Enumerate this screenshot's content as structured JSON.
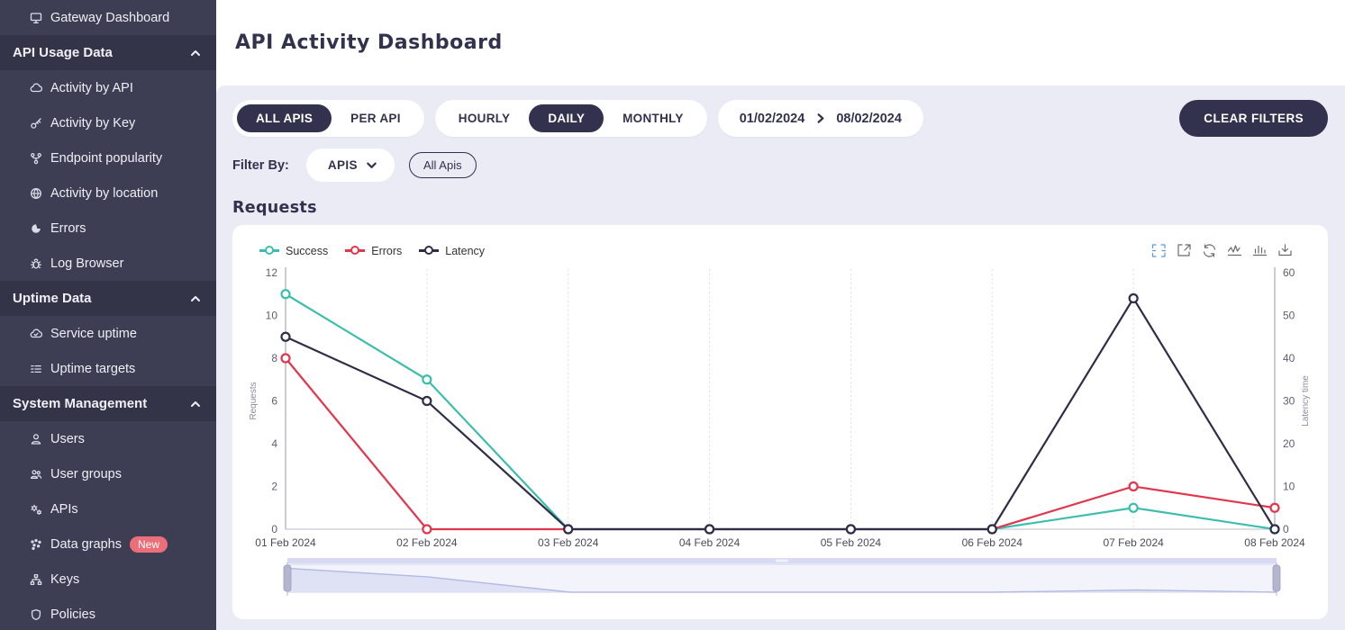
{
  "sidebar": {
    "top_item": {
      "label": "Gateway Dashboard",
      "icon": "monitor-icon"
    },
    "sections": [
      {
        "label": "API Usage Data",
        "items": [
          {
            "label": "Activity by API",
            "icon": "cloud-icon"
          },
          {
            "label": "Activity by Key",
            "icon": "key-icon"
          },
          {
            "label": "Endpoint popularity",
            "icon": "branch-icon"
          },
          {
            "label": "Activity by location",
            "icon": "globe-icon"
          },
          {
            "label": "Errors",
            "icon": "error-circle-icon"
          },
          {
            "label": "Log Browser",
            "icon": "bug-icon"
          }
        ]
      },
      {
        "label": "Uptime Data",
        "items": [
          {
            "label": "Service uptime",
            "icon": "cloud-check-icon"
          },
          {
            "label": "Uptime targets",
            "icon": "list-icon"
          }
        ]
      },
      {
        "label": "System Management",
        "items": [
          {
            "label": "Users",
            "icon": "user-icon"
          },
          {
            "label": "User groups",
            "icon": "user-group-icon"
          },
          {
            "label": "APIs",
            "icon": "gears-icon"
          },
          {
            "label": "Data graphs",
            "icon": "scatter-icon",
            "badge": "New"
          },
          {
            "label": "Keys",
            "icon": "sitemap-icon"
          },
          {
            "label": "Policies",
            "icon": "shield-icon"
          }
        ]
      }
    ]
  },
  "header": {
    "title": "API Activity Dashboard"
  },
  "filters": {
    "api_scope_tabs": [
      {
        "label": "ALL APIS",
        "selected": true
      },
      {
        "label": "PER API",
        "selected": false
      }
    ],
    "granularity_tabs": [
      {
        "label": "HOURLY",
        "selected": false
      },
      {
        "label": "DAILY",
        "selected": true
      },
      {
        "label": "MONTHLY",
        "selected": false
      }
    ],
    "date_range": {
      "start": "01/02/2024",
      "end": "08/02/2024"
    },
    "clear_button_label": "CLEAR FILTERS",
    "filter_by_label": "Filter By:",
    "filter_dropdown_value": "APIS",
    "filter_chip_label": "All Apis"
  },
  "section_title": "Requests",
  "chart_data": {
    "type": "line",
    "x": [
      "01 Feb 2024",
      "02 Feb 2024",
      "03 Feb 2024",
      "04 Feb 2024",
      "05 Feb 2024",
      "06 Feb 2024",
      "07 Feb 2024",
      "08 Feb 2024"
    ],
    "series": [
      {
        "name": "Success",
        "axis": "left",
        "color": "#3dbeac",
        "values": [
          11,
          7,
          0,
          0,
          0,
          0,
          1,
          0
        ]
      },
      {
        "name": "Errors",
        "axis": "left",
        "color": "#e2364d",
        "values": [
          8,
          0,
          0,
          0,
          0,
          0,
          2,
          1
        ]
      },
      {
        "name": "Latency",
        "axis": "right",
        "color": "#2e2e48",
        "values": [
          45,
          30,
          0,
          0,
          0,
          0,
          54,
          0
        ]
      }
    ],
    "left_axis": {
      "label": "Requests",
      "min": 0,
      "max": 12,
      "ticks": [
        0,
        2,
        4,
        6,
        8,
        10,
        12
      ]
    },
    "right_axis": {
      "label": "Latency time",
      "min": 0,
      "max": 60,
      "ticks": [
        0,
        10,
        20,
        30,
        40,
        50,
        60
      ]
    },
    "grid": "vertical-dotted",
    "legend_position": "top-left",
    "datazoom_slider": true
  }
}
